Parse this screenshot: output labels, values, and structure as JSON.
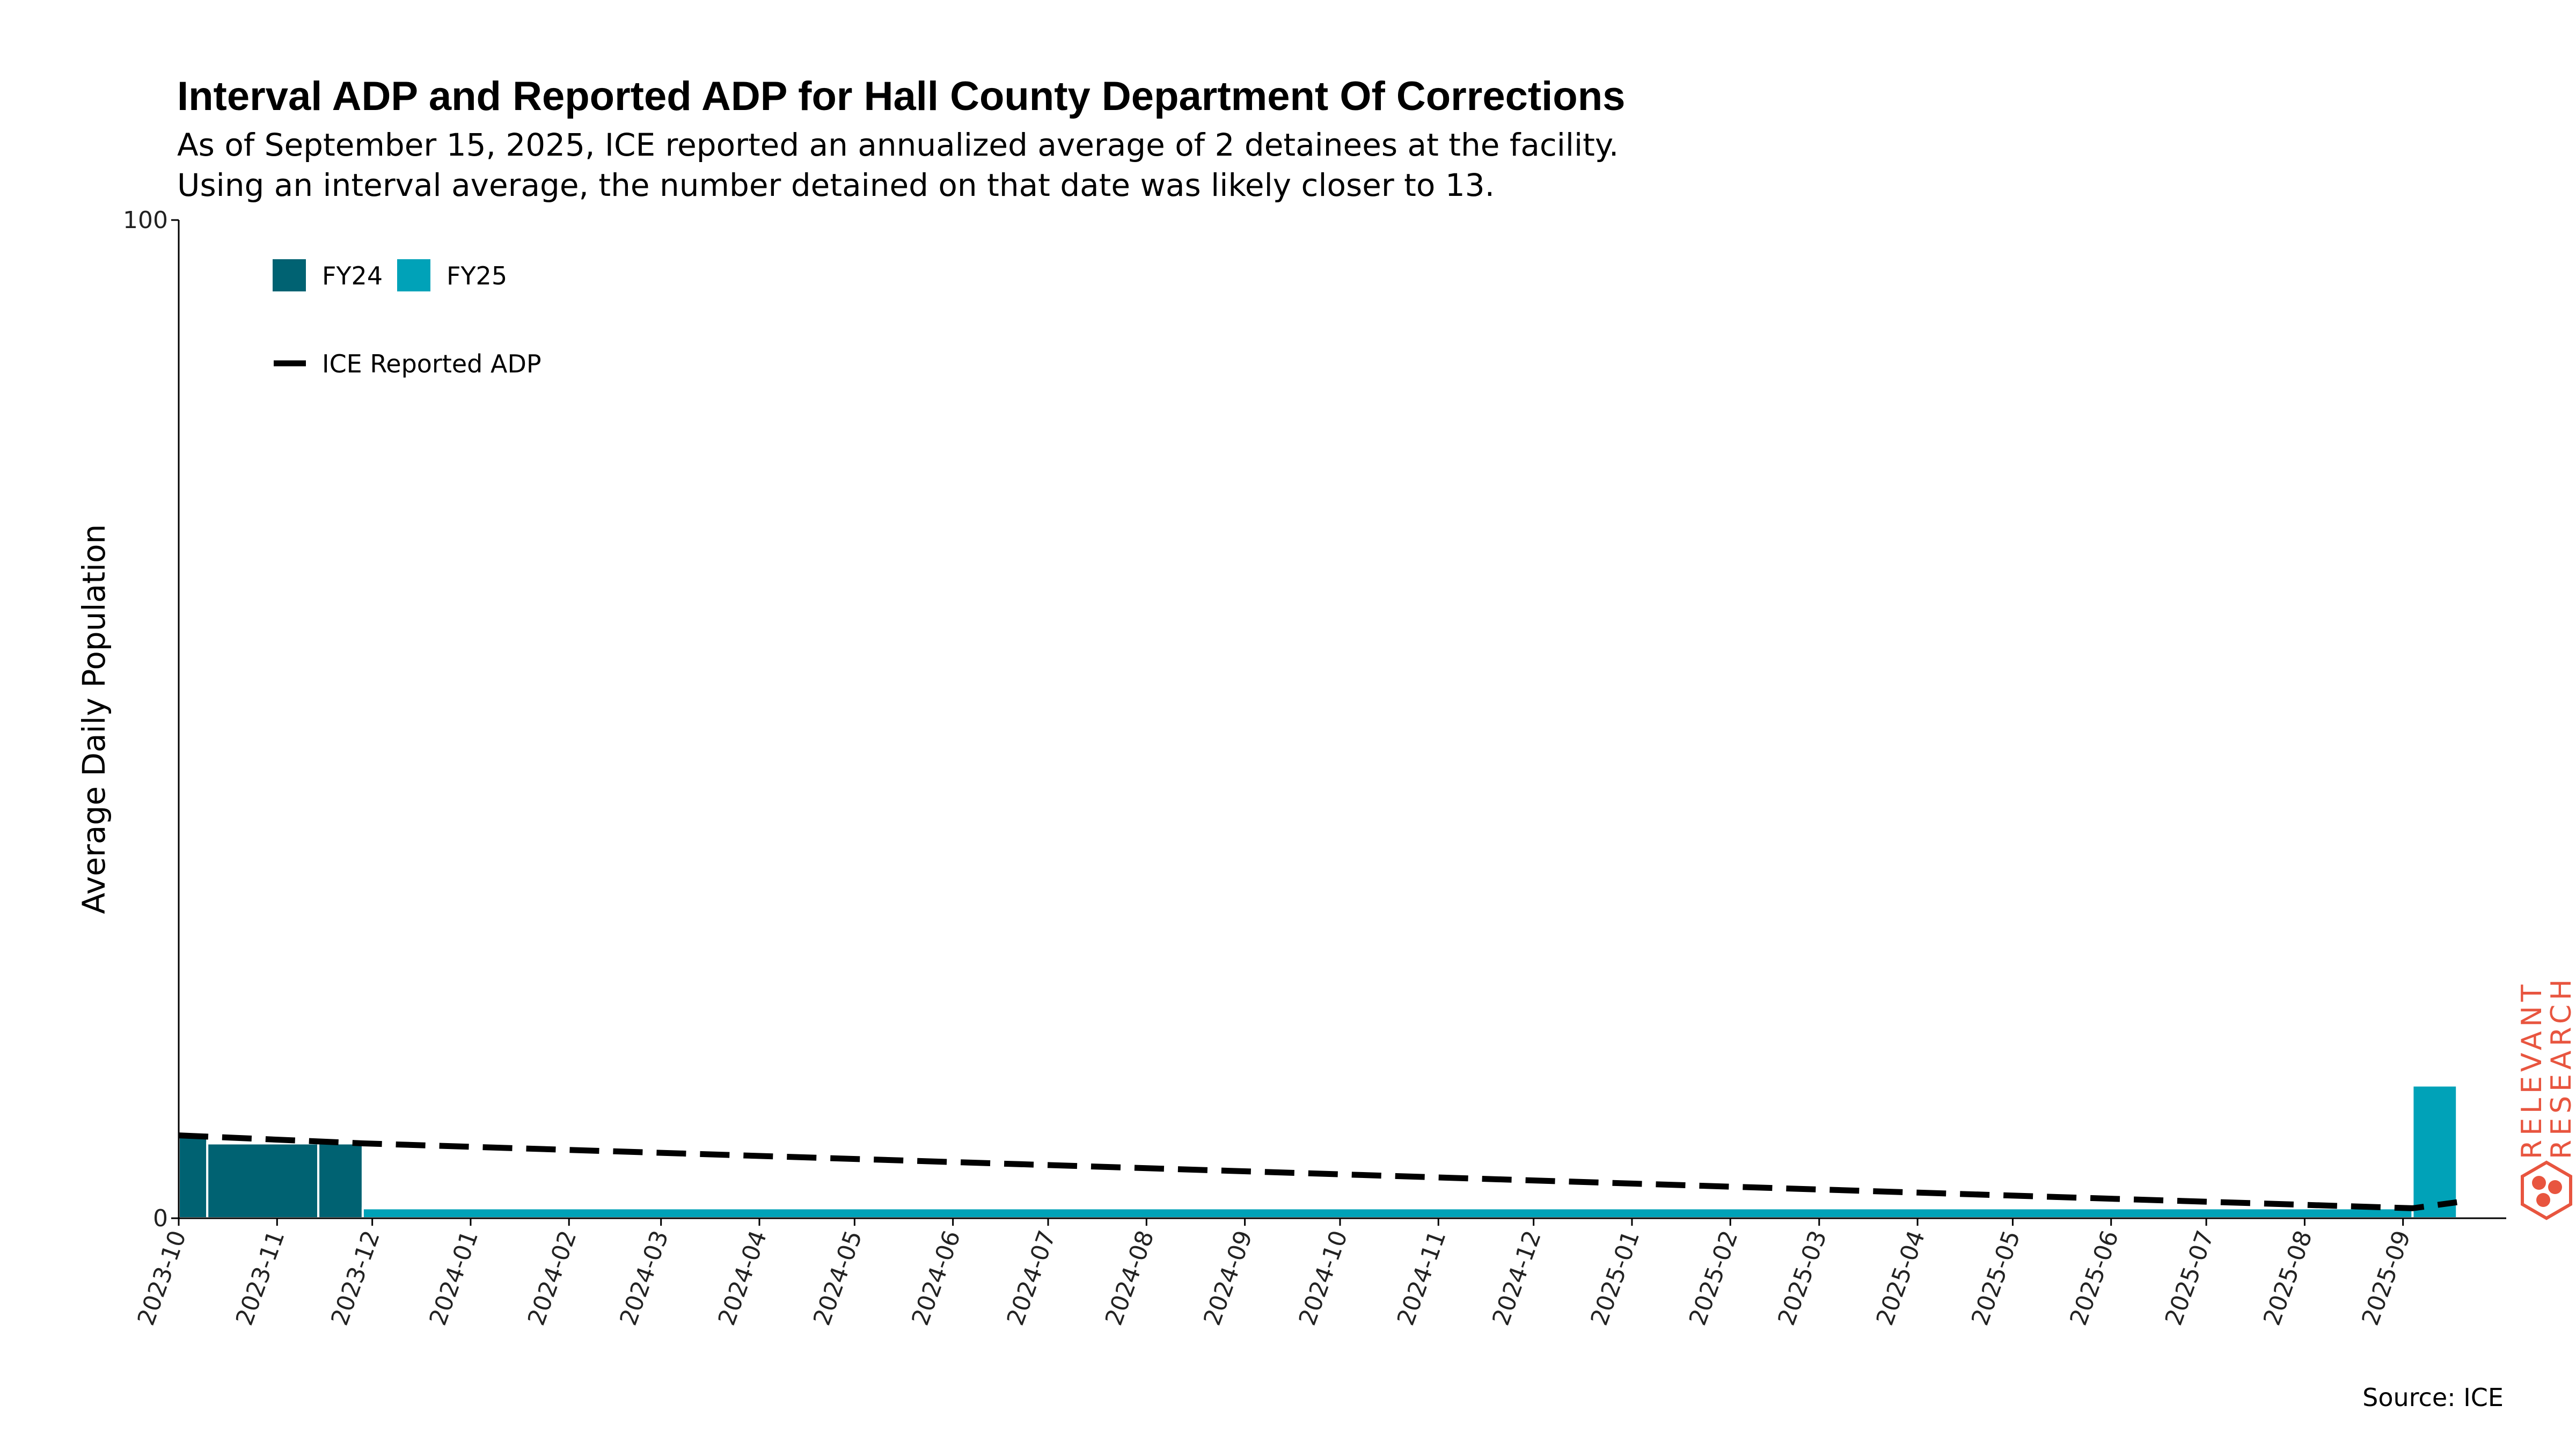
{
  "chart_data": {
    "type": "bar",
    "title": "Interval ADP and Reported ADP for Hall County Department Of Corrections",
    "subtitle_lines": [
      "As of September 15, 2025, ICE reported an annualized average of 2 detainees at the facility.",
      "Using an interval average, the number detained on that date was likely closer to 13."
    ],
    "ylabel": "Average Daily Population",
    "ylim": [
      0,
      100
    ],
    "y_ticks": [
      "0",
      "100"
    ],
    "x_domain": [
      "2023-10-01",
      "2025-09-20"
    ],
    "x_tick_labels": [
      "2023-10",
      "2023-11",
      "2023-12",
      "2024-01",
      "2024-02",
      "2024-03",
      "2024-04",
      "2024-05",
      "2024-06",
      "2024-07",
      "2024-08",
      "2024-09",
      "2024-10",
      "2024-11",
      "2024-12",
      "2025-01",
      "2025-02",
      "2025-03",
      "2025-04",
      "2025-05",
      "2025-06",
      "2025-07",
      "2025-08",
      "2025-09"
    ],
    "series": [
      {
        "name": "FY24",
        "color": "#006272",
        "bars": [
          {
            "start": "2023-10-01",
            "end": "2023-10-10",
            "value": 8.2
          },
          {
            "start": "2023-10-10",
            "end": "2023-11-14",
            "value": 7.5
          },
          {
            "start": "2023-11-14",
            "end": "2023-11-28",
            "value": 7.5
          }
        ]
      },
      {
        "name": "FY25",
        "color": "#00A2B8",
        "bars": [
          {
            "start": "2023-11-28",
            "end": "2025-09-04",
            "value": 1
          },
          {
            "start": "2025-09-04",
            "end": "2025-09-18",
            "value": 13.3
          }
        ]
      }
    ],
    "reported_line": {
      "name": "ICE Reported ADP",
      "color": "#000000",
      "points": [
        {
          "x": "2023-10-01",
          "y": 8.3
        },
        {
          "x": "2023-11-28",
          "y": 7.5
        },
        {
          "x": "2025-09-04",
          "y": 1
        },
        {
          "x": "2025-09-18",
          "y": 1.6
        }
      ]
    },
    "legend_position": "top-left",
    "grid": false
  },
  "source": "Source: ICE",
  "brand": {
    "line1": "RELEVANT",
    "line2": "RESEARCH",
    "color": "#E8553F"
  }
}
